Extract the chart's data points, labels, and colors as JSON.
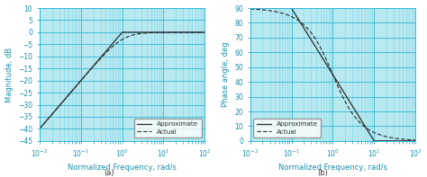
{
  "xlim": [
    0.01,
    100
  ],
  "mag_ylim": [
    -45,
    10
  ],
  "mag_yticks": [
    10,
    5,
    0,
    -5,
    -10,
    -15,
    -20,
    -25,
    -30,
    -35,
    -40,
    -45
  ],
  "phase_ylim": [
    0,
    90
  ],
  "phase_yticks": [
    0,
    10,
    20,
    30,
    40,
    50,
    60,
    70,
    80,
    90
  ],
  "mag_ylabel": "Magnitude, dB",
  "phase_ylabel": "Phase angle, deg",
  "xlabel": "Normalized Frequency, rad/s",
  "label_approx": "Approximate",
  "label_actual": "Actual",
  "subtitle_a": "(a)",
  "subtitle_b": "(b)",
  "line_color": "#2c2c2c",
  "grid_major_color": "#2eb8d4",
  "grid_minor_color": "#7dd8e8",
  "bg_color": "#b8e8f0",
  "fig_color": "#ffffff",
  "axis_label_color": "#1a8faa",
  "tick_label_color": "#1a8faa",
  "font_size": 6.0,
  "legend_fontsize": 5.2,
  "tick_labelsize": 5.5
}
